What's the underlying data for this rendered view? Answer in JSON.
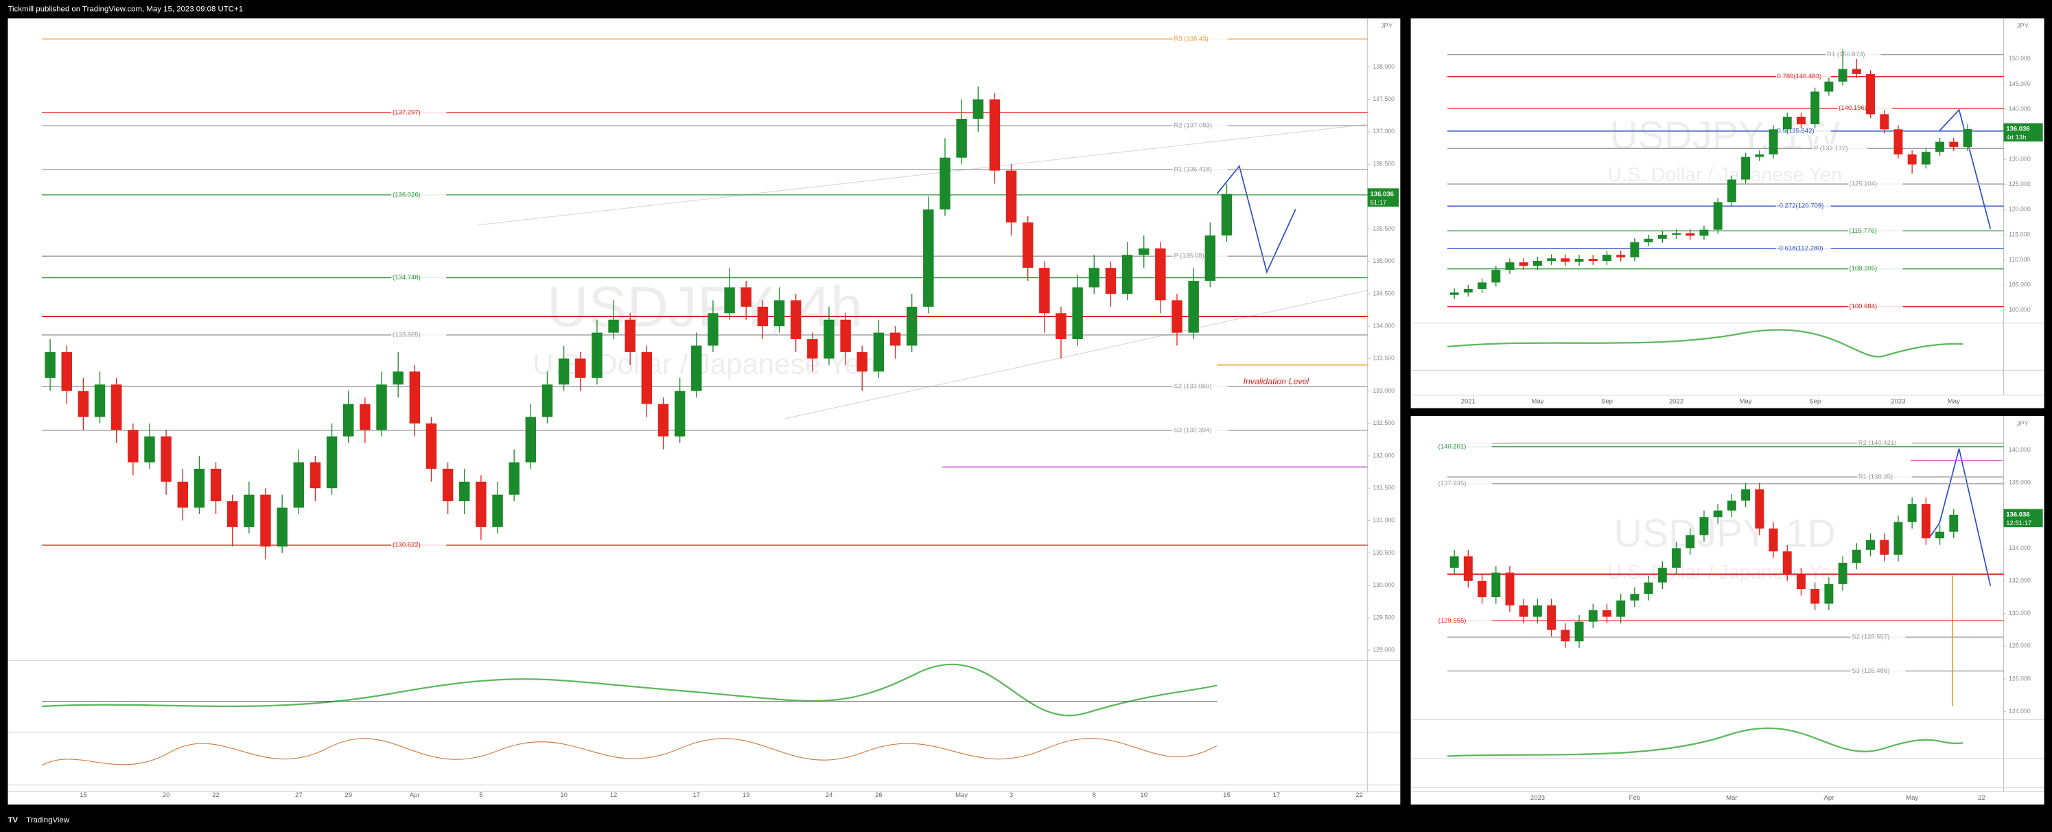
{
  "header": "Tickmill published on TradingView.com, May 15, 2023 09:08 UTC+1",
  "footer": "TradingView",
  "chart_data": [
    {
      "type": "candlestick",
      "title": "USDJPY, 4h",
      "subtitle": "U.S. Dollar / Japanese Yen",
      "y_axis_label": "JPY",
      "categories": [
        null,
        null,
        "15",
        null,
        null,
        null,
        null,
        "20",
        null,
        null,
        "22",
        null,
        null,
        null,
        null,
        "27",
        null,
        null,
        "29",
        null,
        null,
        null,
        "Apr",
        null,
        null,
        null,
        "5",
        null,
        null,
        null,
        null,
        "10",
        null,
        null,
        "12",
        null,
        null,
        null,
        null,
        "17",
        null,
        null,
        "19",
        null,
        null,
        null,
        null,
        "24",
        null,
        null,
        "26",
        null,
        null,
        null,
        null,
        "May",
        null,
        null,
        "3",
        null,
        null,
        null,
        null,
        "8",
        null,
        null,
        "10",
        null,
        null,
        null,
        null,
        "15",
        null,
        null,
        "17",
        null,
        null,
        null,
        null,
        "22"
      ],
      "open": [
        133.2,
        133.6,
        133.0,
        132.6,
        133.1,
        132.4,
        131.9,
        132.3,
        131.6,
        131.2,
        131.8,
        131.3,
        130.9,
        131.4,
        130.6,
        131.2,
        131.9,
        131.5,
        132.3,
        132.8,
        132.4,
        133.1,
        133.3,
        132.5,
        131.8,
        131.3,
        131.6,
        130.9,
        131.4,
        131.9,
        132.6,
        133.1,
        133.5,
        133.2,
        133.9,
        134.1,
        133.6,
        132.8,
        132.3,
        133.0,
        133.7,
        134.2,
        134.6,
        134.3,
        134.0,
        134.4,
        133.8,
        133.5,
        134.1,
        133.6,
        133.3,
        133.9,
        133.7,
        134.3,
        135.8,
        136.6,
        137.2,
        137.5,
        136.4,
        135.6,
        134.9,
        134.2,
        133.8,
        134.6,
        134.9,
        134.5,
        135.1,
        135.2,
        134.4,
        133.9,
        134.7,
        135.4,
        null,
        null,
        null,
        null,
        null,
        null,
        null,
        null
      ],
      "high": [
        133.8,
        133.7,
        133.2,
        133.3,
        133.2,
        132.5,
        132.5,
        132.4,
        131.8,
        132.0,
        131.9,
        131.4,
        131.6,
        131.5,
        131.4,
        132.1,
        132.0,
        132.5,
        133.0,
        132.9,
        133.3,
        133.6,
        133.4,
        132.6,
        131.9,
        131.8,
        131.7,
        131.6,
        132.1,
        132.8,
        133.3,
        133.7,
        133.6,
        134.1,
        134.4,
        134.2,
        133.7,
        132.9,
        133.2,
        133.9,
        134.4,
        134.9,
        134.7,
        134.4,
        134.6,
        134.5,
        133.9,
        134.3,
        134.2,
        133.7,
        134.1,
        134.0,
        134.5,
        136.0,
        136.9,
        137.5,
        137.7,
        137.6,
        136.5,
        135.7,
        135.0,
        134.3,
        134.8,
        135.1,
        135.0,
        135.3,
        135.4,
        135.3,
        134.5,
        134.9,
        135.6,
        136.2,
        null,
        null,
        null,
        null,
        null,
        null,
        null,
        null
      ],
      "low": [
        133.0,
        132.8,
        132.4,
        132.5,
        132.2,
        131.7,
        131.8,
        131.4,
        131.0,
        131.1,
        131.1,
        130.6,
        130.8,
        130.4,
        130.5,
        131.1,
        131.3,
        131.4,
        132.2,
        132.2,
        132.3,
        132.9,
        132.3,
        131.6,
        131.1,
        131.1,
        130.7,
        130.8,
        131.3,
        131.8,
        132.5,
        133.0,
        133.0,
        133.1,
        133.8,
        133.4,
        132.6,
        132.1,
        132.2,
        132.9,
        133.6,
        134.1,
        134.1,
        133.8,
        133.9,
        133.6,
        133.3,
        133.4,
        133.4,
        133.0,
        133.2,
        133.5,
        133.6,
        134.2,
        135.7,
        136.5,
        137.0,
        136.2,
        135.4,
        134.7,
        133.9,
        133.5,
        133.7,
        134.5,
        134.3,
        134.4,
        134.9,
        134.2,
        133.7,
        133.8,
        134.6,
        135.3,
        null,
        null,
        null,
        null,
        null,
        null,
        null,
        null
      ],
      "close": [
        133.6,
        133.0,
        132.6,
        133.1,
        132.4,
        131.9,
        132.3,
        131.6,
        131.2,
        131.8,
        131.3,
        130.9,
        131.4,
        130.6,
        131.2,
        131.9,
        131.5,
        132.3,
        132.8,
        132.4,
        133.1,
        133.3,
        132.5,
        131.8,
        131.3,
        131.6,
        130.9,
        131.4,
        131.9,
        132.6,
        133.1,
        133.5,
        133.2,
        133.9,
        134.1,
        133.6,
        132.8,
        132.3,
        133.0,
        133.7,
        134.2,
        134.6,
        134.3,
        134.0,
        134.4,
        133.8,
        133.5,
        134.1,
        133.6,
        133.3,
        133.9,
        133.7,
        134.3,
        135.8,
        136.6,
        137.2,
        137.5,
        136.4,
        135.6,
        134.9,
        134.2,
        133.8,
        134.6,
        134.9,
        134.5,
        135.1,
        135.2,
        134.4,
        133.9,
        134.7,
        135.4,
        136.04,
        null,
        null,
        null,
        null,
        null,
        null,
        null,
        null
      ],
      "up_color": "#1b8a2a",
      "down_color": "#e3221c",
      "ylim": [
        128.84,
        138.75
      ],
      "yticks": [
        {
          "value": 129,
          "label": "129.000"
        },
        {
          "value": 129.5,
          "label": "129.500"
        },
        {
          "value": 130,
          "label": "130.000"
        },
        {
          "value": 130.5,
          "label": "130.500"
        },
        {
          "value": 131,
          "label": "131.000"
        },
        {
          "value": 131.5,
          "label": "131.500"
        },
        {
          "value": 132,
          "label": "132.000"
        },
        {
          "value": 132.5,
          "label": "132.500"
        },
        {
          "value": 133,
          "label": "133.000"
        },
        {
          "value": 133.5,
          "label": "133.500"
        },
        {
          "value": 134,
          "label": "134.000"
        },
        {
          "value": 134.5,
          "label": "134.500"
        },
        {
          "value": 135,
          "label": "135.000"
        },
        {
          "value": 135.5,
          "label": "135.500"
        },
        {
          "value": 136,
          "label": "136.000"
        },
        {
          "value": 136.5,
          "label": "136.500"
        },
        {
          "value": 137,
          "label": "137.000"
        },
        {
          "value": 137.5,
          "label": "137.500"
        },
        {
          "value": 138,
          "label": "138.000"
        }
      ],
      "levels": [
        {
          "label": "R3 (138.43)",
          "value": 138.43,
          "color": "#f0a030"
        },
        {
          "label": "(137.297)",
          "value": 137.297,
          "color": "#e3221c"
        },
        {
          "label": "R2 (137.093)",
          "value": 137.093,
          "color": "#9a9a9a"
        },
        {
          "label": "R1 (136.418)",
          "value": 136.418,
          "color": "#9a9a9a"
        },
        {
          "label": "(136.026)",
          "value": 136.026,
          "color": "#2e9a3a"
        },
        {
          "label": "P (135.08)",
          "value": 135.08,
          "color": "#9a9a9a"
        },
        {
          "label": "(134.748)",
          "value": 134.748,
          "color": "#2e9a3a"
        },
        {
          "value": 134.15,
          "color": "#e3221c"
        },
        {
          "label": "(133.865)",
          "value": 133.865,
          "color": "#9a9a9a"
        },
        {
          "label": "S2 (133.069)",
          "value": 133.069,
          "color": "#9a9a9a"
        },
        {
          "label": "S3 (132.394)",
          "value": 132.394,
          "color": "#9a9a9a"
        },
        {
          "label": "(130.622)",
          "value": 130.622,
          "color": "#e3221c"
        }
      ],
      "annotations": [
        "Invalidation Level"
      ],
      "last_price": 136.036,
      "countdown": "51:17"
    },
    {
      "type": "candlestick",
      "title": "USDJPY, 1W",
      "subtitle": "U.S. Dollar / Japanese Yen",
      "y_axis_label": "JPY",
      "categories": [
        null,
        "2021",
        null,
        null,
        null,
        null,
        "May",
        null,
        null,
        null,
        null,
        "Sep",
        null,
        null,
        null,
        null,
        "2022",
        null,
        null,
        null,
        null,
        "May",
        null,
        null,
        null,
        null,
        "Sep",
        null,
        null,
        null,
        null,
        null,
        "2023",
        null,
        null,
        null,
        "May",
        null,
        null,
        null
      ],
      "open": [
        103.0,
        103.5,
        104.2,
        105.5,
        108.0,
        109.5,
        108.8,
        109.8,
        110.3,
        109.6,
        110.2,
        109.8,
        111.0,
        110.5,
        113.5,
        114.2,
        115.0,
        115.3,
        114.8,
        116.0,
        121.5,
        126.0,
        130.5,
        131.0,
        136.0,
        138.5,
        137.0,
        143.5,
        145.5,
        148.0,
        147.0,
        139.0,
        136.0,
        131.0,
        129.0,
        131.5,
        133.5,
        132.5,
        null,
        null
      ],
      "high": [
        104.3,
        105.0,
        106.3,
        108.8,
        110.3,
        110.3,
        110.6,
        111.1,
        111.1,
        111.0,
        111.0,
        111.8,
        111.8,
        114.3,
        115.0,
        115.8,
        116.1,
        116.1,
        116.8,
        122.3,
        126.8,
        131.3,
        131.8,
        136.8,
        139.3,
        139.3,
        144.3,
        146.3,
        151.9,
        150.0,
        147.8,
        139.8,
        136.8,
        131.8,
        132.3,
        134.3,
        134.3,
        137.0,
        null,
        null
      ],
      "low": [
        102.2,
        102.7,
        103.4,
        104.7,
        107.2,
        108.0,
        108.0,
        109.0,
        108.8,
        108.8,
        109.0,
        109.0,
        109.7,
        109.7,
        112.7,
        113.4,
        114.2,
        114.0,
        114.0,
        115.2,
        120.7,
        125.2,
        129.7,
        130.2,
        135.2,
        136.2,
        136.2,
        142.7,
        144.7,
        146.2,
        138.2,
        135.2,
        130.2,
        127.2,
        128.2,
        130.7,
        131.7,
        131.7,
        null,
        null
      ],
      "close": [
        103.5,
        104.2,
        105.5,
        108.0,
        109.5,
        108.8,
        109.8,
        110.3,
        109.6,
        110.2,
        109.8,
        111.0,
        110.5,
        113.5,
        114.2,
        115.0,
        115.3,
        114.8,
        116.0,
        121.5,
        126.0,
        130.5,
        131.0,
        136.0,
        138.5,
        137.0,
        143.5,
        145.5,
        148.0,
        147.0,
        139.0,
        136.0,
        131.0,
        129.0,
        131.5,
        133.5,
        132.5,
        136.04,
        null,
        null
      ],
      "up_color": "#1b8a2a",
      "down_color": "#e3221c",
      "ylim": [
        97.4,
        158.1
      ],
      "yticks": [
        {
          "value": 100,
          "label": "100.000"
        },
        {
          "value": 105,
          "label": "105.000"
        },
        {
          "value": 110,
          "label": "110.000"
        },
        {
          "value": 115,
          "label": "115.000"
        },
        {
          "value": 120,
          "label": "120.000"
        },
        {
          "value": 125,
          "label": "125.000"
        },
        {
          "value": 130,
          "label": "130.000"
        },
        {
          "value": 135,
          "label": "135.000"
        },
        {
          "value": 140,
          "label": "140.000"
        },
        {
          "value": 145,
          "label": "145.000"
        },
        {
          "value": 150,
          "label": "150.000"
        }
      ],
      "levels": [
        {
          "label": "R1 (150.873)",
          "value": 150.873,
          "color": "#9a9a9a"
        },
        {
          "label": "0.786(146.483)",
          "value": 146.483,
          "color": "#e3221c"
        },
        {
          "label": "(140.196)",
          "value": 140.196,
          "color": "#e3221c"
        },
        {
          "label": "0.5(135.642)",
          "value": 135.642,
          "color": "#2b4fc8"
        },
        {
          "label": "P (132.172)",
          "value": 132.172,
          "color": "#9a9a9a"
        },
        {
          "label": "(125.104)",
          "value": 125.104,
          "color": "#9a9a9a"
        },
        {
          "label": "-0.272(120.709)",
          "value": 120.709,
          "color": "#2b4fc8"
        },
        {
          "label": "(115.776)",
          "value": 115.776,
          "color": "#2e9a3a"
        },
        {
          "label": "-0.618(112.280)",
          "value": 112.28,
          "color": "#2b4fc8"
        },
        {
          "label": "(108.205)",
          "value": 108.205,
          "color": "#2e9a3a"
        },
        {
          "label": "(100.684)",
          "value": 100.684,
          "color": "#e3221c"
        }
      ],
      "last_price": 136.036,
      "countdown": "4d 13h"
    },
    {
      "type": "candlestick",
      "title": "USDJPY, 1D",
      "subtitle": "U.S. Dollar / Japanese Yen",
      "y_axis_label": "JPY",
      "categories": [
        null,
        null,
        null,
        null,
        null,
        null,
        "2023",
        null,
        null,
        null,
        null,
        null,
        null,
        "Feb",
        null,
        null,
        null,
        null,
        null,
        null,
        "Mar",
        null,
        null,
        null,
        null,
        null,
        null,
        "Apr",
        null,
        null,
        null,
        null,
        null,
        "May",
        null,
        null,
        null,
        null,
        "22",
        null
      ],
      "open": [
        132.8,
        133.5,
        132.0,
        131.0,
        132.5,
        130.5,
        129.8,
        130.5,
        129.0,
        128.3,
        129.5,
        130.2,
        129.8,
        130.8,
        131.2,
        131.9,
        132.8,
        134.0,
        134.8,
        135.9,
        136.3,
        136.9,
        137.6,
        135.2,
        133.8,
        132.4,
        131.5,
        130.6,
        131.8,
        133.1,
        133.9,
        134.5,
        133.6,
        135.6,
        136.7,
        134.6,
        135.0,
        null,
        null,
        null
      ],
      "high": [
        133.9,
        133.9,
        132.4,
        132.9,
        132.9,
        130.9,
        130.9,
        130.9,
        129.4,
        129.9,
        130.6,
        130.6,
        131.2,
        131.6,
        132.3,
        133.2,
        134.4,
        135.2,
        136.3,
        136.7,
        137.3,
        138.0,
        138.0,
        135.6,
        134.2,
        132.8,
        131.9,
        132.2,
        133.5,
        134.3,
        134.9,
        134.9,
        136.0,
        137.1,
        137.1,
        135.4,
        136.4,
        null,
        null,
        null
      ],
      "low": [
        132.4,
        131.6,
        130.6,
        130.6,
        130.1,
        129.4,
        129.4,
        128.6,
        127.9,
        127.9,
        129.1,
        129.4,
        129.4,
        130.4,
        130.8,
        131.5,
        132.4,
        133.6,
        134.4,
        135.5,
        135.9,
        136.5,
        134.8,
        133.4,
        132.0,
        131.1,
        130.2,
        130.2,
        131.4,
        132.7,
        133.5,
        133.2,
        133.2,
        135.2,
        134.2,
        134.2,
        134.6,
        null,
        null,
        null
      ],
      "close": [
        133.5,
        132.0,
        131.0,
        132.5,
        130.5,
        129.8,
        130.5,
        129.0,
        128.3,
        129.5,
        130.2,
        129.8,
        130.8,
        131.2,
        131.9,
        132.8,
        134.0,
        134.8,
        135.9,
        136.3,
        136.9,
        137.6,
        135.2,
        133.8,
        132.4,
        131.5,
        130.6,
        131.8,
        133.1,
        133.9,
        134.5,
        133.6,
        135.6,
        136.7,
        134.6,
        135.0,
        136.04,
        null,
        null,
        null
      ],
      "up_color": "#1b8a2a",
      "down_color": "#e3221c",
      "ylim": [
        123.52,
        142.08
      ],
      "yticks": [
        {
          "value": 124,
          "label": "124.000"
        },
        {
          "value": 126,
          "label": "126.000"
        },
        {
          "value": 128,
          "label": "128.000"
        },
        {
          "value": 130,
          "label": "130.000"
        },
        {
          "value": 132,
          "label": "132.000"
        },
        {
          "value": 134,
          "label": "134.000"
        },
        {
          "value": 136,
          "label": "136.000"
        },
        {
          "value": 138,
          "label": "138.000"
        },
        {
          "value": 140,
          "label": "140.000"
        }
      ],
      "levels": [
        {
          "label": "R2 (140.421)",
          "value": 140.421,
          "color": "#9a9a9a"
        },
        {
          "label": "(140.201)",
          "value": 140.201,
          "color": "#2e9a3a"
        },
        {
          "label": "R1 (138.35)",
          "value": 138.35,
          "color": "#9a9a9a"
        },
        {
          "label": "(137.935)",
          "value": 137.935,
          "color": "#9a9a9a"
        },
        {
          "value": 132.4,
          "color": "#e3221c"
        },
        {
          "label": "(129.555)",
          "value": 129.555,
          "color": "#e3221c"
        },
        {
          "label": "S2 (128.557)",
          "value": 128.557,
          "color": "#9a9a9a"
        },
        {
          "label": "S3 (126.486)",
          "value": 126.486,
          "color": "#9a9a9a"
        }
      ],
      "last_price": 136.036,
      "countdown": "12:51:17"
    }
  ]
}
